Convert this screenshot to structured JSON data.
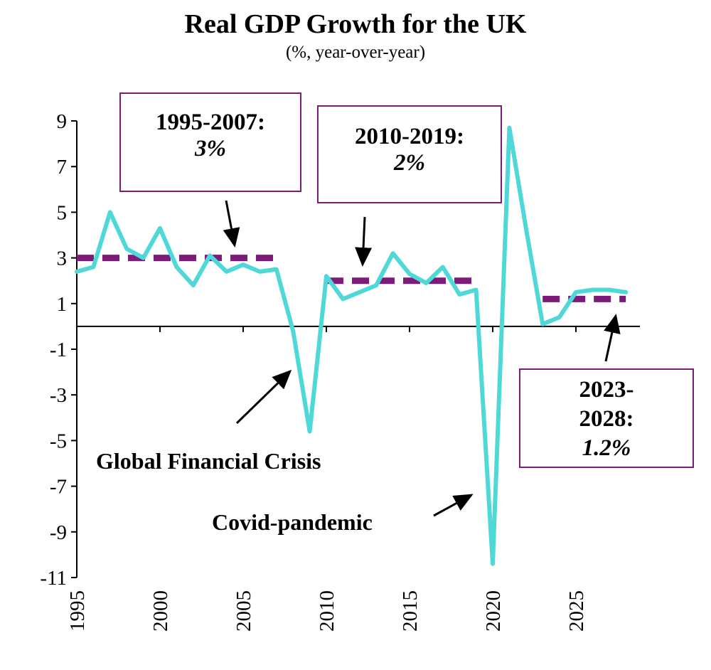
{
  "chart_data": {
    "type": "line",
    "title": "Real GDP Growth for the UK",
    "subtitle": "(%, year-over-year)",
    "xlabel": "",
    "ylabel": "",
    "xlim": [
      1995,
      2029
    ],
    "ylim": [
      -11,
      9
    ],
    "yticks": [
      9,
      7,
      5,
      3,
      1,
      -1,
      -3,
      -5,
      -7,
      -9,
      -11
    ],
    "xticks": [
      1995,
      2000,
      2005,
      2010,
      2015,
      2020,
      2025
    ],
    "line_color": "#4fd8d8",
    "avg_color": "#7b1c78",
    "series": [
      {
        "name": "Real GDP Growth",
        "x": [
          1995,
          1996,
          1997,
          1998,
          1999,
          2000,
          2001,
          2002,
          2003,
          2004,
          2005,
          2006,
          2007,
          2008,
          2009,
          2010,
          2011,
          2012,
          2013,
          2014,
          2015,
          2016,
          2017,
          2018,
          2019,
          2020,
          2021,
          2022,
          2023,
          2024,
          2025,
          2026,
          2027,
          2028
        ],
        "values": [
          2.4,
          2.6,
          5.0,
          3.4,
          3.0,
          4.3,
          2.6,
          1.8,
          3.1,
          2.4,
          2.7,
          2.4,
          2.5,
          -0.2,
          -4.6,
          2.2,
          1.2,
          1.5,
          1.8,
          3.2,
          2.3,
          1.9,
          2.6,
          1.4,
          1.6,
          -10.4,
          8.7,
          4.3,
          0.1,
          0.4,
          1.5,
          1.6,
          1.6,
          1.5
        ]
      }
    ],
    "averages": [
      {
        "name": "1995-2007 average",
        "x_start": 1995,
        "x_end": 2007,
        "value": 3.0
      },
      {
        "name": "2010-2019 average",
        "x_start": 2010,
        "x_end": 2019,
        "value": 2.0
      },
      {
        "name": "2023-2028 average",
        "x_start": 2023,
        "x_end": 2028,
        "value": 1.2
      }
    ]
  },
  "annotations": {
    "box1": {
      "years": "1995-2007:",
      "value": "3%"
    },
    "box2": {
      "years": "2010-2019:",
      "value": "2%"
    },
    "box3": {
      "years_line1": "2023-",
      "years_line2": "2028:",
      "value": "1.2%"
    },
    "gfc": "Global Financial Crisis",
    "covid": "Covid-pandemic"
  }
}
